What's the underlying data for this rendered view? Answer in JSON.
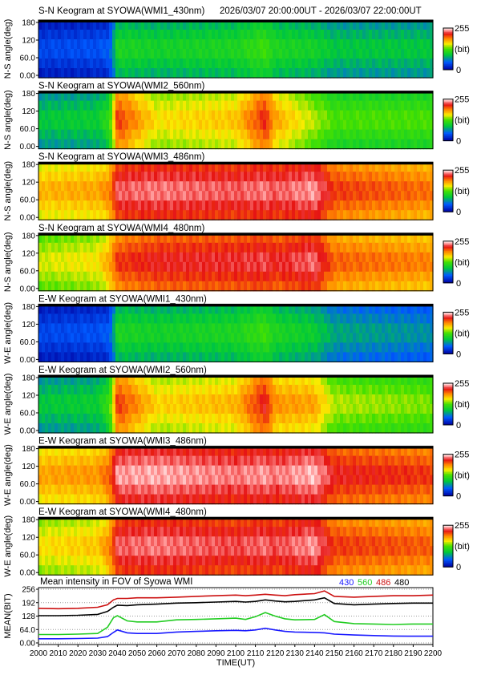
{
  "header": {
    "title": "S-N Keogram at SYOWA(WMI1_430nm)",
    "time_range": "2026/03/07 20:00:00UT - 2026/03/07 22:00:00UT"
  },
  "colorbar": {
    "max_label": "255",
    "unit_label": "(bit)",
    "min_label": "0"
  },
  "colors": {
    "c430": "#1a1aff",
    "c560": "#22cc22",
    "c486": "#cc1111",
    "c480": "#000000"
  },
  "chart_data": [
    {
      "type": "heatmap",
      "title": "S-N Keogram at SYOWA(WMI1_430nm)",
      "ylabel": "N-S angle(deg)",
      "ylim": [
        0,
        180
      ],
      "yticks": [
        "0.00",
        "60.0",
        "120",
        "180"
      ],
      "xlim": [
        2000,
        2200
      ],
      "zlim": [
        0,
        255
      ],
      "profile_x": [
        2000,
        2030,
        2036,
        2040,
        2060,
        2100,
        2115,
        2120,
        2140,
        2150,
        2200
      ],
      "profile_v": [
        40,
        45,
        50,
        110,
        105,
        110,
        125,
        110,
        105,
        95,
        95
      ]
    },
    {
      "type": "heatmap",
      "title": "S-N Keogram at SYOWA(WMI2_560nm)",
      "ylabel": "N-S angle(deg)",
      "ylim": [
        0,
        180
      ],
      "yticks": [
        "0.00",
        "60.0",
        "120",
        "180"
      ],
      "xlim": [
        2000,
        2200
      ],
      "zlim": [
        0,
        255
      ],
      "profile_x": [
        2000,
        2030,
        2036,
        2040,
        2060,
        2100,
        2115,
        2120,
        2140,
        2150,
        2200
      ],
      "profile_v": [
        95,
        100,
        120,
        215,
        165,
        175,
        220,
        185,
        150,
        130,
        130
      ]
    },
    {
      "type": "heatmap",
      "title": "S-N Keogram at SYOWA(WMI3_486nm)",
      "ylabel": "N-S angle(deg)",
      "ylim": [
        0,
        180
      ],
      "yticks": [
        "0.00",
        "60.0",
        "120",
        "180"
      ],
      "xlim": [
        2000,
        2200
      ],
      "zlim": [
        0,
        255
      ],
      "profile_x": [
        2000,
        2030,
        2036,
        2040,
        2060,
        2100,
        2115,
        2120,
        2140,
        2150,
        2200
      ],
      "profile_v": [
        180,
        185,
        195,
        235,
        240,
        235,
        240,
        235,
        245,
        215,
        200
      ]
    },
    {
      "type": "heatmap",
      "title": "S-N Keogram at SYOWA(WMI4_480nm)",
      "ylabel": "N-S angle(deg)",
      "ylim": [
        0,
        180
      ],
      "yticks": [
        "0.00",
        "60.0",
        "120",
        "180"
      ],
      "xlim": [
        2000,
        2200
      ],
      "zlim": [
        0,
        255
      ],
      "profile_x": [
        2000,
        2030,
        2036,
        2040,
        2060,
        2100,
        2115,
        2120,
        2140,
        2150,
        2200
      ],
      "profile_v": [
        155,
        165,
        185,
        215,
        225,
        228,
        232,
        225,
        238,
        205,
        195
      ]
    },
    {
      "type": "heatmap",
      "title": "E-W Keogram at SYOWA(WMI1_430nm)",
      "ylabel": "W-E angle(deg)",
      "ylim": [
        0,
        180
      ],
      "yticks": [
        "0.00",
        "60.0",
        "120",
        "180"
      ],
      "xlim": [
        2000,
        2200
      ],
      "zlim": [
        0,
        255
      ],
      "profile_x": [
        2000,
        2030,
        2036,
        2040,
        2060,
        2100,
        2115,
        2120,
        2140,
        2150,
        2200
      ],
      "profile_v": [
        40,
        45,
        50,
        110,
        105,
        110,
        125,
        110,
        100,
        80,
        70
      ]
    },
    {
      "type": "heatmap",
      "title": "E-W Keogram at SYOWA(WMI2_560nm)",
      "ylabel": "W-E angle(deg)",
      "ylim": [
        0,
        180
      ],
      "yticks": [
        "0.00",
        "60.0",
        "120",
        "180"
      ],
      "xlim": [
        2000,
        2200
      ],
      "zlim": [
        0,
        255
      ],
      "profile_x": [
        2000,
        2030,
        2036,
        2040,
        2060,
        2100,
        2115,
        2120,
        2140,
        2150,
        2200
      ],
      "profile_v": [
        95,
        100,
        125,
        215,
        170,
        180,
        225,
        190,
        185,
        150,
        140
      ]
    },
    {
      "type": "heatmap",
      "title": "E-W Keogram at SYOWA(WMI3_486nm)",
      "ylabel": "W-E angle(deg)",
      "ylim": [
        0,
        180
      ],
      "yticks": [
        "0.00",
        "60.0",
        "120",
        "180"
      ],
      "xlim": [
        2000,
        2200
      ],
      "zlim": [
        0,
        255
      ],
      "profile_x": [
        2000,
        2030,
        2036,
        2040,
        2060,
        2100,
        2115,
        2120,
        2140,
        2150,
        2200
      ],
      "profile_v": [
        185,
        190,
        205,
        245,
        248,
        240,
        245,
        240,
        250,
        225,
        215
      ]
    },
    {
      "type": "heatmap",
      "title": "E-W Keogram at SYOWA(WMI4_480nm)",
      "ylabel": "W-E angle(deg)",
      "ylim": [
        0,
        180
      ],
      "yticks": [
        "0.00",
        "60.0",
        "120",
        "180"
      ],
      "xlim": [
        2000,
        2200
      ],
      "zlim": [
        0,
        255
      ],
      "profile_x": [
        2000,
        2030,
        2036,
        2040,
        2060,
        2100,
        2115,
        2120,
        2140,
        2150,
        2200
      ],
      "profile_v": [
        165,
        175,
        195,
        235,
        240,
        232,
        238,
        232,
        245,
        215,
        205
      ]
    },
    {
      "type": "line",
      "title": "Mean intensity in FOV of Syowa WMI",
      "xlabel": "TIME(UT)",
      "ylabel": "MEAN(BIT)",
      "xlim": [
        2000,
        2200
      ],
      "ylim": [
        0,
        256
      ],
      "xticks": [
        "2000",
        "2010",
        "2020",
        "2030",
        "2040",
        "2050",
        "2060",
        "2070",
        "2080",
        "2090",
        "2100",
        "2110",
        "2120",
        "2130",
        "2140",
        "2150",
        "2160",
        "2170",
        "2180",
        "2190",
        "2200"
      ],
      "yticks": [
        "0.00",
        "64.0",
        "128",
        "192",
        "256"
      ],
      "x": [
        2000,
        2010,
        2020,
        2030,
        2035,
        2038,
        2040,
        2045,
        2050,
        2060,
        2070,
        2080,
        2090,
        2100,
        2105,
        2110,
        2115,
        2120,
        2125,
        2130,
        2140,
        2145,
        2150,
        2160,
        2170,
        2180,
        2190,
        2200
      ],
      "series": [
        {
          "name": "430",
          "color": "#1a1aff",
          "values": [
            20,
            20,
            21,
            23,
            30,
            50,
            62,
            48,
            45,
            45,
            52,
            55,
            58,
            60,
            58,
            62,
            70,
            62,
            55,
            52,
            50,
            48,
            42,
            38,
            35,
            33,
            32,
            32
          ]
        },
        {
          "name": "560",
          "color": "#22cc22",
          "values": [
            40,
            40,
            42,
            45,
            75,
            120,
            130,
            105,
            100,
            100,
            110,
            112,
            115,
            118,
            112,
            125,
            145,
            128,
            115,
            110,
            112,
            135,
            102,
            92,
            90,
            88,
            90,
            90
          ]
        },
        {
          "name": "486",
          "color": "#cc1111",
          "values": [
            165,
            163,
            165,
            170,
            182,
            205,
            212,
            212,
            215,
            215,
            218,
            222,
            225,
            228,
            225,
            228,
            232,
            228,
            225,
            230,
            235,
            248,
            222,
            218,
            222,
            225,
            225,
            228
          ]
        },
        {
          "name": "480",
          "color": "#000000",
          "values": [
            130,
            130,
            132,
            136,
            150,
            170,
            180,
            178,
            182,
            185,
            190,
            192,
            195,
            198,
            195,
            198,
            205,
            200,
            196,
            198,
            205,
            215,
            188,
            182,
            185,
            188,
            190,
            190
          ]
        }
      ]
    }
  ]
}
